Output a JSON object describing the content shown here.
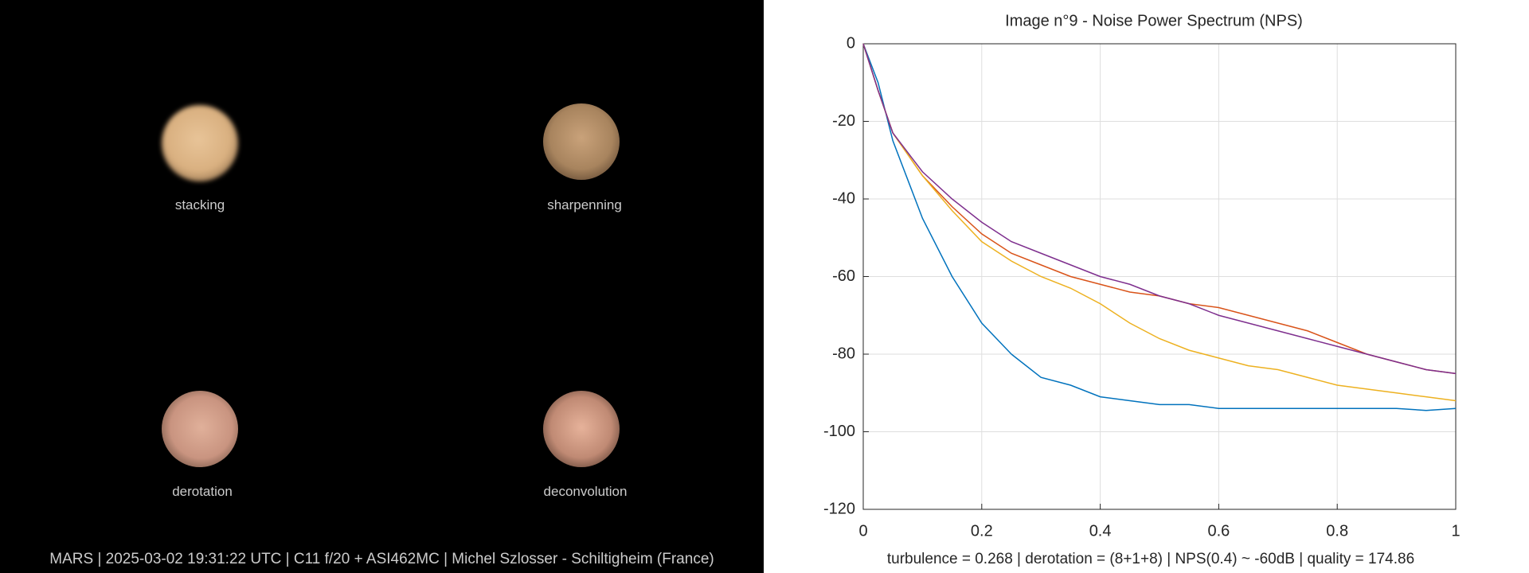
{
  "panels": [
    {
      "label": "stacking"
    },
    {
      "label": "sharpenning"
    },
    {
      "label": "derotation"
    },
    {
      "label": "deconvolution"
    }
  ],
  "caption": "MARS | 2025-03-02  19:31:22 UTC | C11 f/20 + ASI462MC | Michel Szlosser - Schiltigheim (France)",
  "chart_data": {
    "type": "line",
    "title": "Image n°9 - Noise Power Spectrum (NPS)",
    "footnote": "turbulence = 0.268 | derotation = (8+1+8) | NPS(0.4) ~ -60dB |  quality = 174.86",
    "x": [
      0,
      0.025,
      0.05,
      0.1,
      0.15,
      0.2,
      0.25,
      0.3,
      0.35,
      0.4,
      0.45,
      0.5,
      0.55,
      0.6,
      0.65,
      0.7,
      0.75,
      0.8,
      0.85,
      0.9,
      0.95,
      1
    ],
    "series": [
      {
        "color": "#0072bd",
        "values": [
          0,
          -10,
          -25,
          -45,
          -60,
          -72,
          -80,
          -86,
          -88,
          -91,
          -92,
          -93,
          -93,
          -94,
          -94,
          -94,
          -94,
          -94,
          -94,
          -94,
          -94.5,
          -94
        ]
      },
      {
        "color": "#d95319",
        "values": [
          0,
          -12,
          -23,
          -34,
          -42,
          -49,
          -54,
          -57,
          -60,
          -62,
          -64,
          -65,
          -67,
          -68,
          -70,
          -72,
          -74,
          -77,
          -80,
          -82,
          -84,
          -85
        ]
      },
      {
        "color": "#edb120",
        "values": [
          0,
          -12,
          -23,
          -34,
          -43,
          -51,
          -56,
          -60,
          -63,
          -67,
          -72,
          -76,
          -79,
          -81,
          -83,
          -84,
          -86,
          -88,
          -89,
          -90,
          -91,
          -92
        ]
      },
      {
        "color": "#7e2f8e",
        "values": [
          0,
          -12,
          -23,
          -33,
          -40,
          -46,
          -51,
          -54,
          -57,
          -60,
          -62,
          -65,
          -67,
          -70,
          -72,
          -74,
          -76,
          -78,
          -80,
          -82,
          -84,
          -85
        ]
      }
    ],
    "xlim": [
      0,
      1
    ],
    "xticks": [
      0,
      0.2,
      0.4,
      0.6,
      0.8,
      1
    ],
    "ylim": [
      -120,
      0
    ],
    "yticks": [
      -120,
      -100,
      -80,
      -60,
      -40,
      -20,
      0
    ],
    "grid": true
  }
}
